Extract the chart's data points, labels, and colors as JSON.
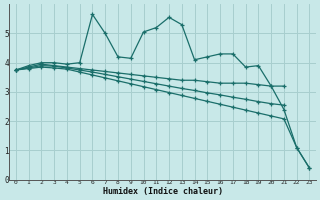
{
  "xlabel": "Humidex (Indice chaleur)",
  "bg_color": "#c8e8e8",
  "grid_color": "#a8cece",
  "line_color": "#1a6e6a",
  "xlim": [
    -0.5,
    23.5
  ],
  "ylim": [
    0,
    6
  ],
  "x_ticks": [
    0,
    1,
    2,
    3,
    4,
    5,
    6,
    7,
    8,
    9,
    10,
    11,
    12,
    13,
    14,
    15,
    16,
    17,
    18,
    19,
    20,
    21,
    22,
    23
  ],
  "y_ticks": [
    0,
    1,
    2,
    3,
    4,
    5
  ],
  "series": [
    {
      "x": [
        0,
        1,
        2,
        3,
        4,
        5,
        6,
        7,
        8,
        9,
        10,
        11,
        12,
        13,
        14,
        15,
        16,
        17,
        18,
        19,
        20,
        21,
        22,
        23
      ],
      "y": [
        3.75,
        3.9,
        4.0,
        4.0,
        3.95,
        4.0,
        5.65,
        5.0,
        4.2,
        4.15,
        5.05,
        5.2,
        5.55,
        5.3,
        4.1,
        4.2,
        4.3,
        4.3,
        3.85,
        3.9,
        3.2,
        2.4,
        1.1,
        0.4
      ]
    },
    {
      "x": [
        0,
        1,
        2,
        3,
        4,
        5,
        6,
        7,
        8,
        9,
        10,
        11,
        12,
        13,
        14,
        15,
        16,
        17,
        18,
        19,
        20,
        21
      ],
      "y": [
        3.75,
        3.85,
        3.95,
        3.9,
        3.85,
        3.8,
        3.75,
        3.7,
        3.65,
        3.6,
        3.55,
        3.5,
        3.45,
        3.4,
        3.4,
        3.35,
        3.3,
        3.3,
        3.3,
        3.25,
        3.2,
        3.2
      ]
    },
    {
      "x": [
        0,
        1,
        2,
        3,
        4,
        5,
        6,
        7,
        8,
        9,
        10,
        11,
        12,
        13,
        14,
        15,
        16,
        17,
        18,
        19,
        20,
        21
      ],
      "y": [
        3.75,
        3.82,
        3.9,
        3.88,
        3.82,
        3.75,
        3.68,
        3.6,
        3.52,
        3.44,
        3.36,
        3.28,
        3.2,
        3.12,
        3.05,
        2.97,
        2.9,
        2.82,
        2.75,
        2.67,
        2.6,
        2.55
      ]
    },
    {
      "x": [
        0,
        1,
        2,
        3,
        4,
        5,
        6,
        7,
        8,
        9,
        10,
        11,
        12,
        13,
        14,
        15,
        16,
        17,
        18,
        19,
        20,
        21,
        22,
        23
      ],
      "y": [
        3.75,
        3.8,
        3.85,
        3.82,
        3.78,
        3.68,
        3.58,
        3.48,
        3.38,
        3.28,
        3.18,
        3.08,
        2.98,
        2.88,
        2.78,
        2.68,
        2.58,
        2.48,
        2.38,
        2.28,
        2.18,
        2.08,
        1.1,
        0.4
      ]
    }
  ]
}
